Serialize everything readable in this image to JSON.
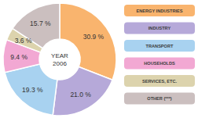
{
  "chart_data": {
    "type": "pie",
    "title": "YEAR",
    "subtitle": "2006",
    "categories": [
      "ENERGY INDUSTRIES",
      "INDUSTRY",
      "TRANSPORT",
      "HOUSEHOLDS",
      "SERVICES, ETC.",
      "OTHER (***)"
    ],
    "values": [
      30.9,
      21.0,
      19.3,
      9.4,
      3.6,
      15.7
    ],
    "value_labels": [
      "30.9 %",
      "21.0 %",
      "19.3 %",
      "9.4 %",
      "3.6 %",
      "15.7 %"
    ],
    "colors": [
      "#f9b46e",
      "#b6a9d9",
      "#a8d2f0",
      "#f2a8d3",
      "#dcd3ad",
      "#cbbfbf"
    ],
    "data_labels": true,
    "legend": "right"
  }
}
